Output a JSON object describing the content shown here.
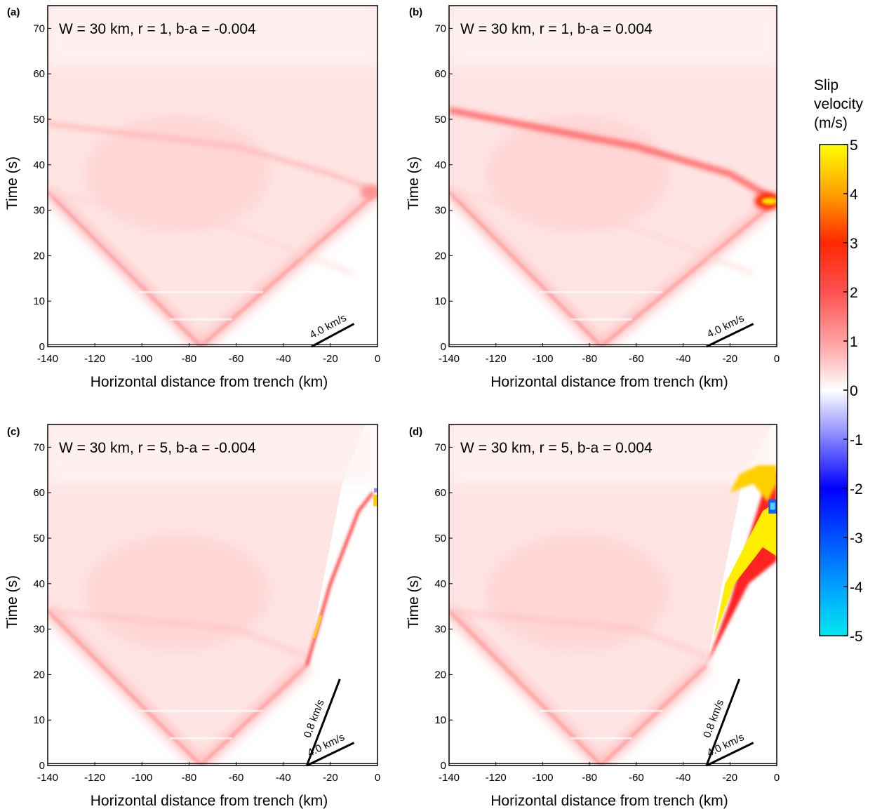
{
  "colorbar": {
    "title_lines": [
      "Slip",
      "velocity",
      "(m/s)"
    ],
    "ticks": [
      "5",
      "4",
      "3",
      "2",
      "1",
      "0",
      "-1",
      "-2",
      "-3",
      "-4",
      "-5"
    ],
    "range": [
      -5,
      5
    ],
    "colors": {
      "min": "#00e8f0",
      "neg_mid": "#0000ff",
      "zero": "#ffffff",
      "pos_low": "#ff8080",
      "pos_mid": "#ff0000",
      "pos_high": "#ff8c00",
      "max": "#ffff00"
    }
  },
  "chart_data": [
    {
      "panel": "(a)",
      "type": "heatmap",
      "title": "W = 30 km, r = 1, b-a = -0.004",
      "xlabel": "Horizontal distance from trench (km)",
      "ylabel": "Time (s)",
      "xlim": [
        -140,
        0
      ],
      "ylim": [
        0,
        75
      ],
      "xticks": [
        "-140",
        "-120",
        "-100",
        "-80",
        "-60",
        "-40",
        "-20",
        "0"
      ],
      "yticks": [
        "0",
        "10",
        "20",
        "30",
        "40",
        "50",
        "60",
        "70"
      ],
      "hypocenter_x": -75,
      "velocity_lines": [
        {
          "label": "4.0 km/s",
          "x": [
            -28,
            -10
          ],
          "y": [
            0,
            5
          ]
        }
      ],
      "features": {
        "onset_left": [
          -140,
          34
        ],
        "onset_right": [
          0,
          34
        ],
        "max_slip_velocity": 1.5
      }
    },
    {
      "panel": "(b)",
      "type": "heatmap",
      "title": "W = 30 km, r = 1, b-a = 0.004",
      "xlabel": "Horizontal distance from trench (km)",
      "ylabel": "Time (s)",
      "xlim": [
        -140,
        0
      ],
      "ylim": [
        0,
        75
      ],
      "xticks": [
        "-140",
        "-120",
        "-100",
        "-80",
        "-60",
        "-40",
        "-20",
        "0"
      ],
      "yticks": [
        "0",
        "10",
        "20",
        "30",
        "40",
        "50",
        "60",
        "70"
      ],
      "hypocenter_x": -75,
      "velocity_lines": [
        {
          "label": "4.0 km/s",
          "x": [
            -30,
            -10
          ],
          "y": [
            0,
            5
          ]
        }
      ],
      "features": {
        "onset_left": [
          -140,
          34
        ],
        "onset_right": [
          0,
          32
        ],
        "max_slip_velocity": 4.5
      }
    },
    {
      "panel": "(c)",
      "type": "heatmap",
      "title": "W = 30 km, r = 5, b-a = -0.004",
      "xlabel": "Horizontal distance from trench (km)",
      "ylabel": "Time (s)",
      "xlim": [
        -140,
        0
      ],
      "ylim": [
        0,
        75
      ],
      "xticks": [
        "-140",
        "-120",
        "-100",
        "-80",
        "-60",
        "-40",
        "-20",
        "0"
      ],
      "yticks": [
        "0",
        "10",
        "20",
        "30",
        "40",
        "50",
        "60",
        "70"
      ],
      "hypocenter_x": -75,
      "velocity_lines": [
        {
          "label": "0.8 km/s",
          "x": [
            -30,
            -16
          ],
          "y": [
            0,
            19
          ]
        },
        {
          "label": "4.0 km/s",
          "x": [
            -30,
            -10
          ],
          "y": [
            0,
            5
          ]
        }
      ],
      "features": {
        "onset_left": [
          -140,
          34
        ],
        "kink": [
          -30,
          22
        ],
        "max_slip_velocity": 5
      }
    },
    {
      "panel": "(d)",
      "type": "heatmap",
      "title": "W = 30 km, r = 5, b-a = 0.004",
      "xlabel": "Horizontal distance from trench (km)",
      "ylabel": "Time (s)",
      "xlim": [
        -140,
        0
      ],
      "ylim": [
        0,
        75
      ],
      "xticks": [
        "-140",
        "-120",
        "-100",
        "-80",
        "-60",
        "-40",
        "-20",
        "0"
      ],
      "yticks": [
        "0",
        "10",
        "20",
        "30",
        "40",
        "50",
        "60",
        "70"
      ],
      "hypocenter_x": -75,
      "velocity_lines": [
        {
          "label": "0.8 km/s",
          "x": [
            -30,
            -16
          ],
          "y": [
            0,
            19
          ]
        },
        {
          "label": "4.0 km/s",
          "x": [
            -30,
            -10
          ],
          "y": [
            0,
            5
          ]
        }
      ],
      "features": {
        "onset_left": [
          -140,
          34
        ],
        "kink": [
          -30,
          22
        ],
        "max_slip_velocity": 5,
        "min_slip_velocity": -2
      }
    }
  ]
}
